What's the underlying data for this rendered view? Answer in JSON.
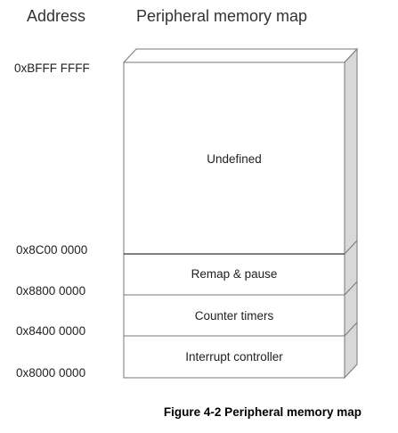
{
  "headers": {
    "address": "Address",
    "map": "Peripheral memory map"
  },
  "addresses": [
    "0xBFFF FFFF",
    "0x8C00 0000",
    "0x8800 0000",
    "0x8400 0000",
    "0x8000 0000"
  ],
  "regions": [
    "Undefined",
    "Remap & pause",
    "Counter timers",
    "Interrupt controller"
  ],
  "caption": "Figure 4-2 Peripheral memory map"
}
